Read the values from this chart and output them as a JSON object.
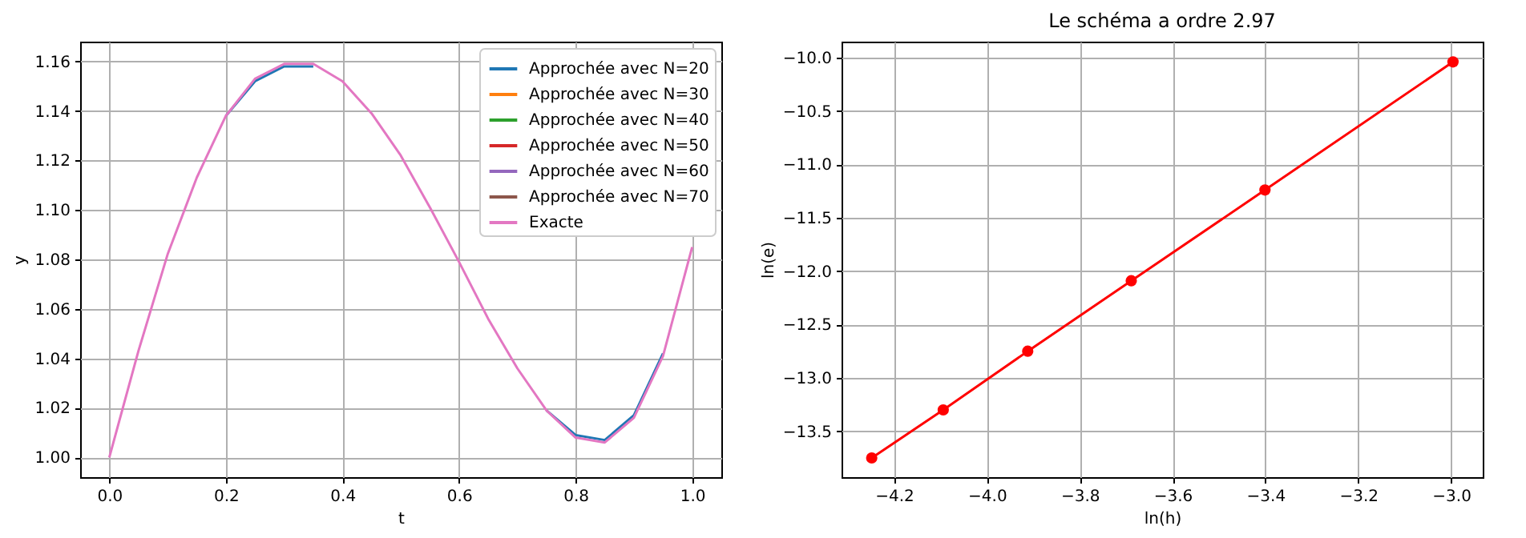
{
  "chart_data": [
    {
      "type": "line",
      "xlabel": "t",
      "ylabel": "y",
      "xlim": [
        -0.05,
        1.05
      ],
      "ylim": [
        0.992,
        1.168
      ],
      "xticks": [
        {
          "value": 0,
          "label": "0.0"
        },
        0.2,
        0.4,
        0.6,
        0.8,
        {
          "value": 1,
          "label": "1.0"
        }
      ],
      "yticks": [
        {
          "value": 1,
          "label": "1.00"
        },
        1.02,
        1.04,
        1.06,
        1.08,
        {
          "value": 1.1,
          "label": "1.10"
        },
        1.12,
        1.14,
        1.16
      ],
      "grid": true,
      "legend": "top right",
      "x": [
        0,
        0.05,
        0.1,
        0.15,
        0.2,
        0.25,
        0.3,
        0.35,
        0.4,
        0.45,
        0.5,
        0.55,
        0.6,
        0.65,
        0.7,
        0.75,
        0.8,
        0.85,
        0.9,
        0.95,
        1.0
      ],
      "series": [
        {
          "name": "Approchée avec N=20",
          "color": "#1f77b4",
          "values": [
            null,
            null,
            null,
            null,
            1.138,
            1.152,
            1.158,
            1.158,
            null,
            null,
            null,
            null,
            null,
            null,
            null,
            1.019,
            1.009,
            1.007,
            1.017,
            1.042,
            null
          ]
        },
        {
          "name": "Approchée avec N=30",
          "color": "#ff7f0e",
          "values": [
            null,
            null,
            null,
            null,
            null,
            null,
            null,
            null,
            null,
            null,
            null,
            null,
            null,
            null,
            null,
            null,
            null,
            null,
            null,
            null,
            null
          ]
        },
        {
          "name": "Approchée avec N=40",
          "color": "#2ca02c",
          "values": [
            null,
            null,
            null,
            null,
            null,
            null,
            null,
            null,
            null,
            null,
            null,
            null,
            null,
            null,
            null,
            null,
            null,
            null,
            null,
            null,
            null
          ]
        },
        {
          "name": "Approchée avec N=50",
          "color": "#d62728",
          "values": [
            null,
            null,
            null,
            null,
            null,
            null,
            null,
            null,
            null,
            null,
            null,
            null,
            null,
            null,
            null,
            null,
            null,
            null,
            null,
            null,
            null
          ]
        },
        {
          "name": "Approchée avec N=60",
          "color": "#9467bd",
          "values": [
            null,
            null,
            null,
            null,
            null,
            null,
            null,
            null,
            null,
            null,
            null,
            null,
            null,
            null,
            null,
            null,
            null,
            null,
            null,
            null,
            null
          ]
        },
        {
          "name": "Approchée avec N=70",
          "color": "#8c564b",
          "values": [
            null,
            null,
            null,
            null,
            null,
            null,
            null,
            null,
            null,
            null,
            null,
            null,
            null,
            null,
            null,
            null,
            null,
            null,
            null,
            null,
            null
          ]
        },
        {
          "name": "Exacte",
          "color": "#e377c2",
          "values": [
            1.0,
            1.043,
            1.082,
            1.113,
            1.138,
            1.153,
            1.159,
            1.159,
            1.152,
            1.139,
            1.122,
            1.101,
            1.079,
            1.056,
            1.036,
            1.019,
            1.008,
            1.006,
            1.016,
            1.041,
            1.085
          ]
        }
      ]
    },
    {
      "type": "line",
      "title": "Le schéma a ordre 2.97",
      "xlabel": "ln(h)",
      "ylabel": "ln(e)",
      "xlim": [
        -4.313,
        -2.932
      ],
      "ylim": [
        -13.93,
        -9.85
      ],
      "xticks": [
        {
          "value": -4.2,
          "label": "−4.2"
        },
        {
          "value": -4,
          "label": "−4.0"
        },
        {
          "value": -3.8,
          "label": "−3.8"
        },
        {
          "value": -3.6,
          "label": "−3.6"
        },
        {
          "value": -3.4,
          "label": "−3.4"
        },
        {
          "value": -3.2,
          "label": "−3.2"
        },
        {
          "value": -3,
          "label": "−3.0"
        }
      ],
      "yticks": [
        {
          "value": -13.5,
          "label": "−13.5"
        },
        {
          "value": -13,
          "label": "−13.0"
        },
        {
          "value": -12.5,
          "label": "−12.5"
        },
        {
          "value": -12,
          "label": "−12.0"
        },
        {
          "value": -11.5,
          "label": "−11.5"
        },
        {
          "value": -11,
          "label": "−11.0"
        },
        {
          "value": -10.5,
          "label": "−10.5"
        },
        {
          "value": -10,
          "label": "−10.0"
        }
      ],
      "grid": true,
      "marker": "circle",
      "x": [
        -4.248,
        -4.094,
        -3.912,
        -3.689,
        -3.401,
        -2.996
      ],
      "series": [
        {
          "color": "#ff0000",
          "values": [
            -13.75,
            -13.3,
            -12.75,
            -12.09,
            -11.24,
            -10.04
          ]
        }
      ]
    }
  ]
}
